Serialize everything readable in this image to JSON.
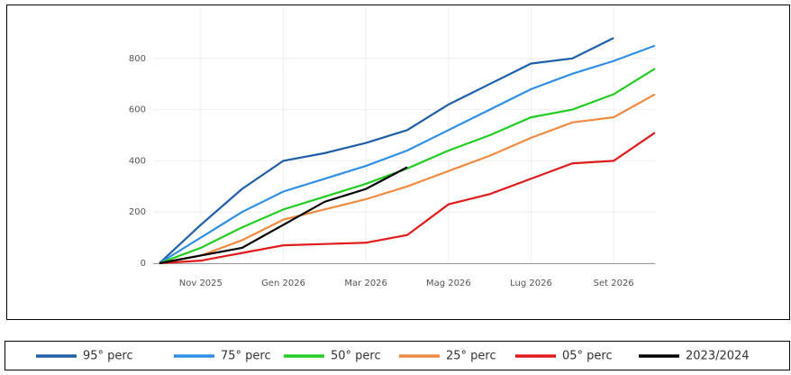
{
  "chart_data": {
    "type": "line",
    "x": [
      "2025-10",
      "2025-11",
      "2025-12",
      "2026-01",
      "2026-02",
      "2026-03",
      "2026-04",
      "2026-05",
      "2026-06",
      "2026-07",
      "2026-08",
      "2026-09",
      "2026-10"
    ],
    "xticks": [
      {
        "value": "2025-11",
        "label": "Nov 2025"
      },
      {
        "value": "2026-01",
        "label": "Gen 2026"
      },
      {
        "value": "2026-03",
        "label": "Mar 2026"
      },
      {
        "value": "2026-05",
        "label": "Mag 2026"
      },
      {
        "value": "2026-07",
        "label": "Lug 2026"
      },
      {
        "value": "2026-09",
        "label": "Set 2026"
      }
    ],
    "ylim": [
      0,
      1000
    ],
    "yticks": [
      0,
      200,
      400,
      600,
      800
    ],
    "grid": true,
    "series": [
      {
        "name": "95° perc",
        "color": "#1f5fa8",
        "values": [
          0,
          150,
          290,
          400,
          430,
          470,
          520,
          620,
          700,
          780,
          800,
          880,
          null
        ]
      },
      {
        "name": "75° perc",
        "color": "#2f8fe8",
        "values": [
          0,
          100,
          200,
          280,
          330,
          380,
          440,
          520,
          600,
          680,
          740,
          790,
          850
        ]
      },
      {
        "name": "50° perc",
        "color": "#22cc22",
        "values": [
          0,
          60,
          140,
          210,
          260,
          310,
          370,
          440,
          500,
          570,
          600,
          660,
          760
        ]
      },
      {
        "name": "25° perc",
        "color": "#f08a40",
        "values": [
          0,
          30,
          90,
          170,
          210,
          250,
          300,
          360,
          420,
          490,
          550,
          570,
          660
        ]
      },
      {
        "name": "05° perc",
        "color": "#e01b1b",
        "values": [
          0,
          10,
          40,
          70,
          75,
          80,
          110,
          230,
          270,
          330,
          390,
          400,
          510
        ]
      },
      {
        "name": "2023/2024",
        "color": "#000000",
        "values": [
          0,
          30,
          60,
          150,
          240,
          290,
          375,
          null,
          null,
          null,
          null,
          null,
          null
        ]
      }
    ]
  }
}
